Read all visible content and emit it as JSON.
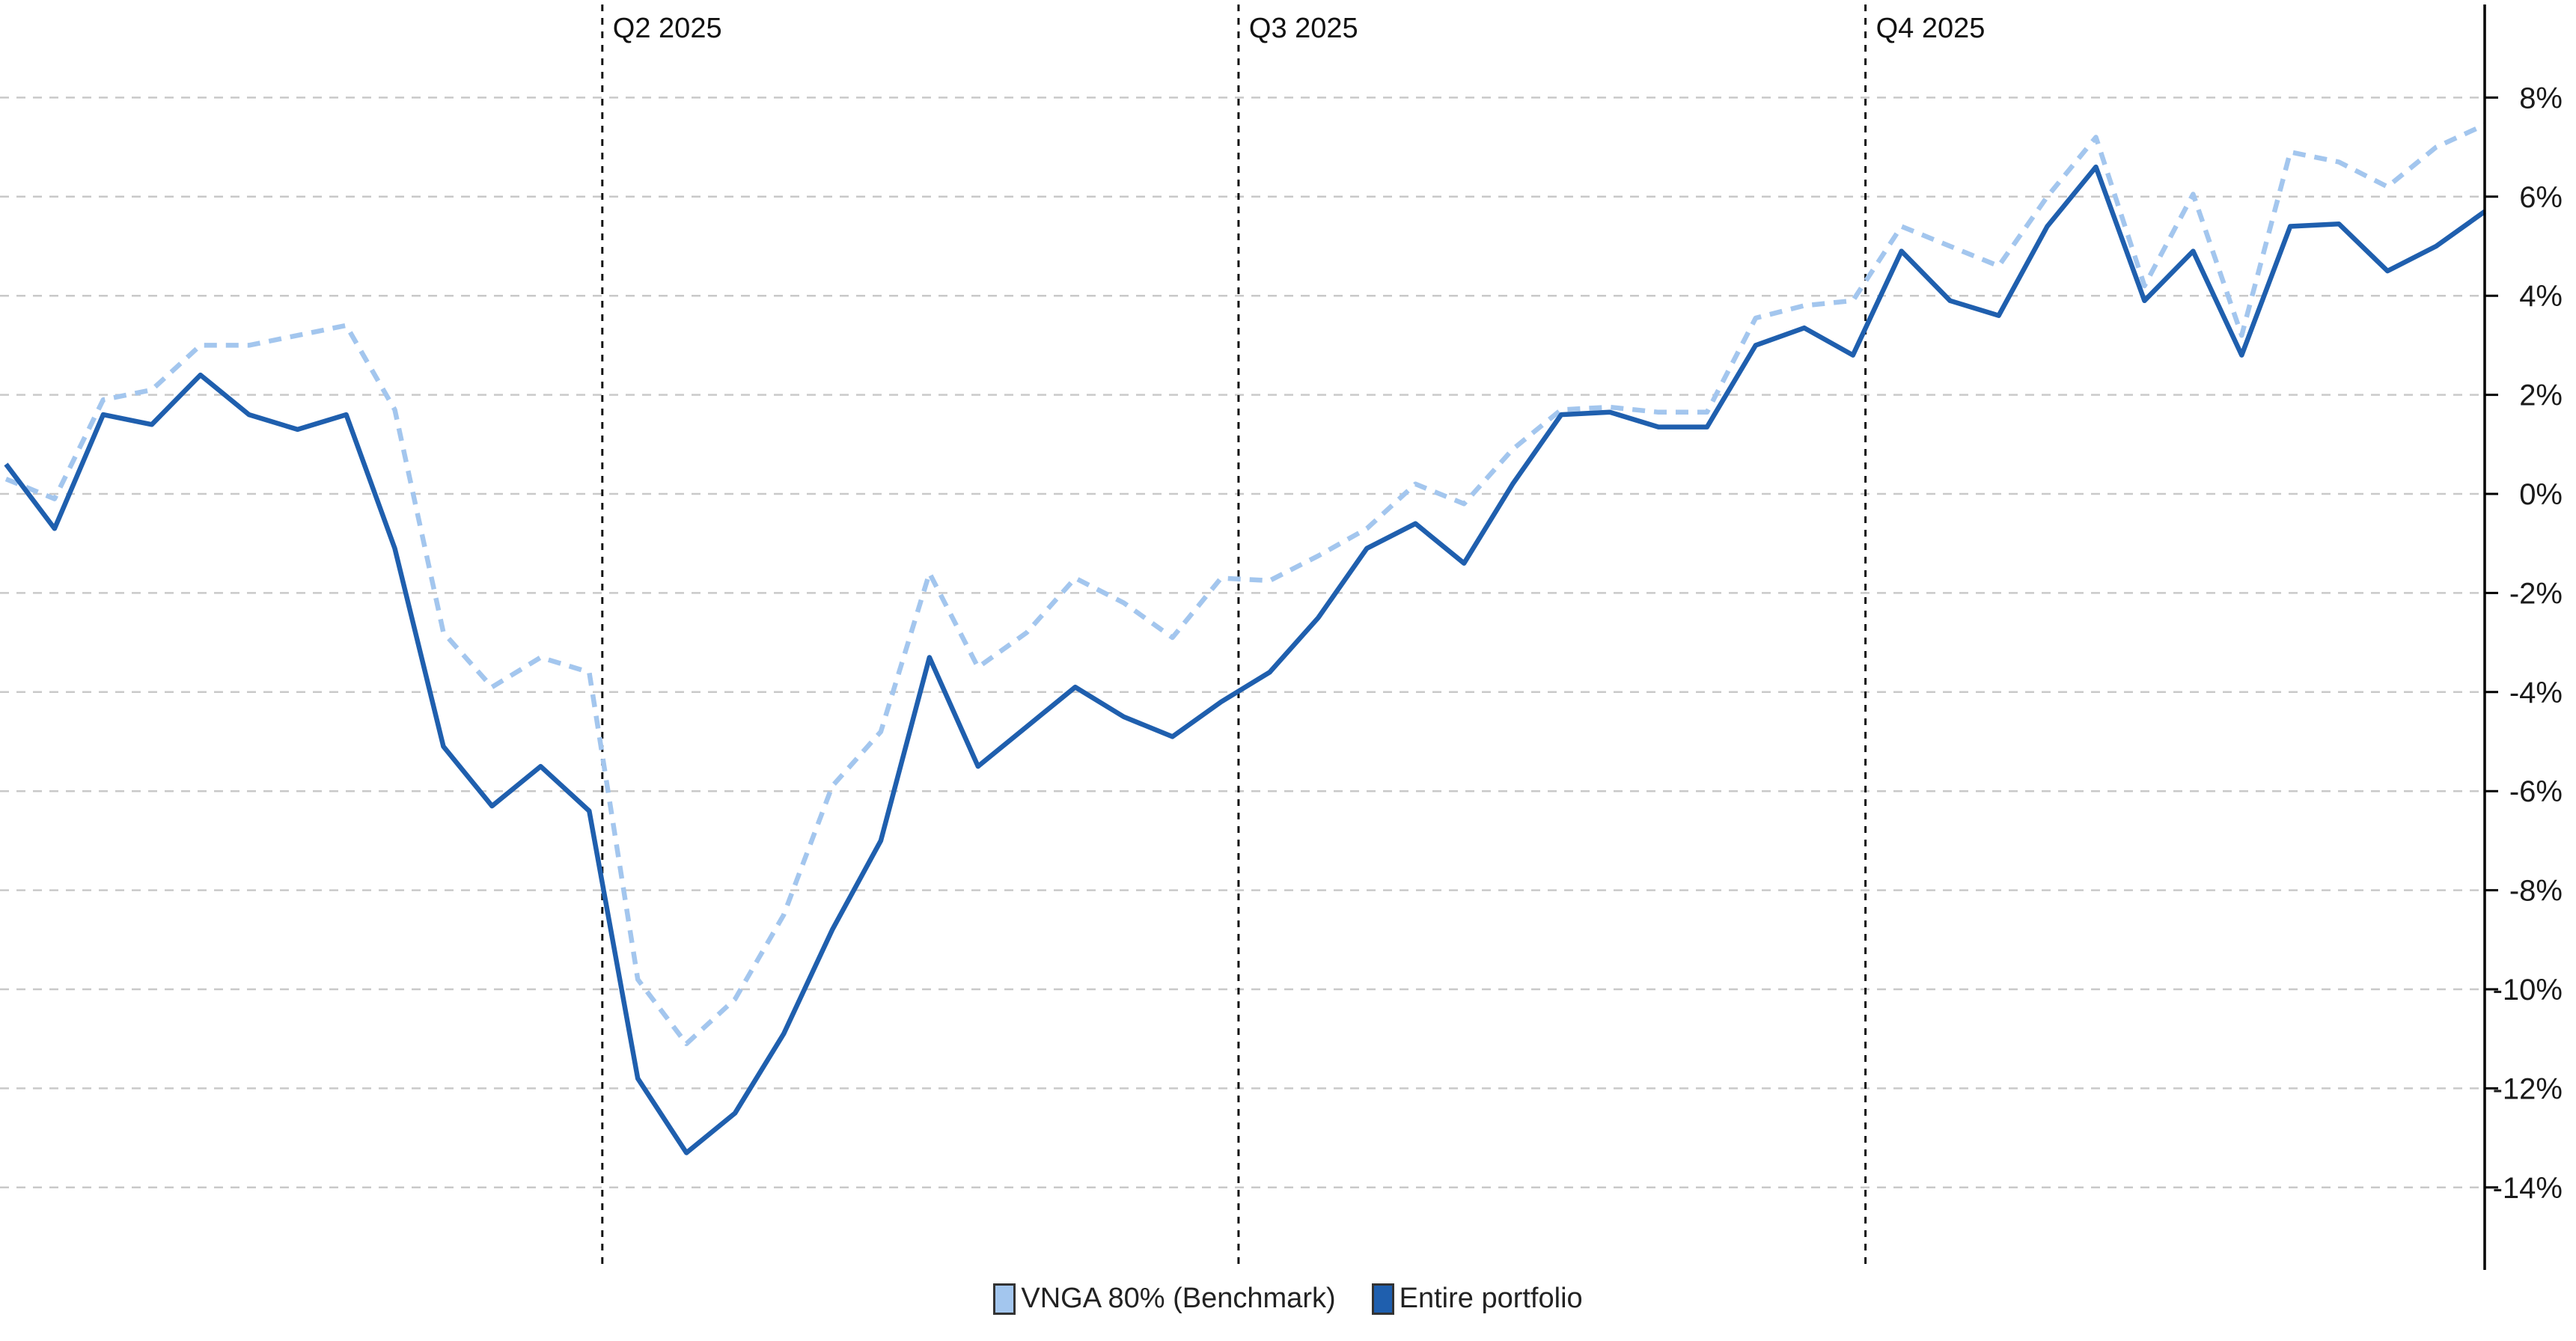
{
  "chart_data": {
    "type": "line",
    "title": "",
    "xlabel": "",
    "ylabel": "",
    "x_unit": "week",
    "n_points": 52,
    "ylim": [
      -15.6,
      9.9
    ],
    "grid": "horizontal-dashed",
    "legend_position": "bottom",
    "axis_side": "right",
    "y_ticks": [
      {
        "value": 8,
        "label": "8%"
      },
      {
        "value": 6,
        "label": "6%"
      },
      {
        "value": 4,
        "label": "4%"
      },
      {
        "value": 2,
        "label": "2%"
      },
      {
        "value": 0,
        "label": "0%"
      },
      {
        "value": -2,
        "label": "-2%"
      },
      {
        "value": -4,
        "label": "-4%"
      },
      {
        "value": -6,
        "label": "-6%"
      },
      {
        "value": -8,
        "label": "-8%"
      },
      {
        "value": -10,
        "label": "-10%"
      },
      {
        "value": -12,
        "label": "-12%"
      },
      {
        "value": -14,
        "label": "-14%"
      }
    ],
    "quarter_markers": [
      {
        "label": "Q2 2025",
        "index": 12.27
      },
      {
        "label": "Q3 2025",
        "index": 25.36
      },
      {
        "label": "Q4 2025",
        "index": 38.26
      }
    ],
    "series": [
      {
        "name": "VNGA 80% (Benchmark)",
        "color": "#a3c6ee",
        "style": "dashed",
        "values": [
          0.3,
          -0.1,
          1.9,
          2.1,
          3.0,
          3.0,
          3.2,
          3.4,
          1.7,
          -2.8,
          -3.9,
          -3.3,
          -3.6,
          -9.8,
          -11.1,
          -10.2,
          -8.5,
          -5.9,
          -4.8,
          -1.6,
          -3.5,
          -2.8,
          -1.7,
          -2.2,
          -2.9,
          -1.7,
          -1.75,
          -1.25,
          -0.7,
          0.2,
          -0.2,
          0.9,
          1.7,
          1.75,
          1.65,
          1.65,
          3.55,
          3.8,
          3.9,
          5.4,
          5.0,
          4.6,
          6.0,
          7.2,
          4.2,
          6.05,
          3.2,
          6.9,
          6.7,
          6.2,
          7.0,
          7.45
        ]
      },
      {
        "name": "Entire portfolio",
        "color": "#1f5fae",
        "style": "solid",
        "values": [
          0.6,
          -0.7,
          1.6,
          1.4,
          2.4,
          1.6,
          1.3,
          1.6,
          -1.1,
          -5.1,
          -6.3,
          -5.5,
          -6.4,
          -11.8,
          -13.3,
          -12.5,
          -10.9,
          -8.8,
          -7.0,
          -3.3,
          -5.5,
          -4.7,
          -3.9,
          -4.5,
          -4.9,
          -4.2,
          -3.6,
          -2.5,
          -1.1,
          -0.6,
          -1.4,
          0.2,
          1.6,
          1.65,
          1.35,
          1.35,
          3.0,
          3.35,
          2.8,
          4.9,
          3.9,
          3.6,
          5.4,
          6.6,
          3.9,
          4.9,
          2.8,
          5.4,
          5.45,
          4.5,
          5.0,
          5.7
        ]
      }
    ],
    "colors": {
      "gridline": "#c9c9c9",
      "axis": "#000000",
      "quarter_line": "#111111",
      "tick_label": "#1a1a1a",
      "quarter_label": "#111111"
    }
  }
}
